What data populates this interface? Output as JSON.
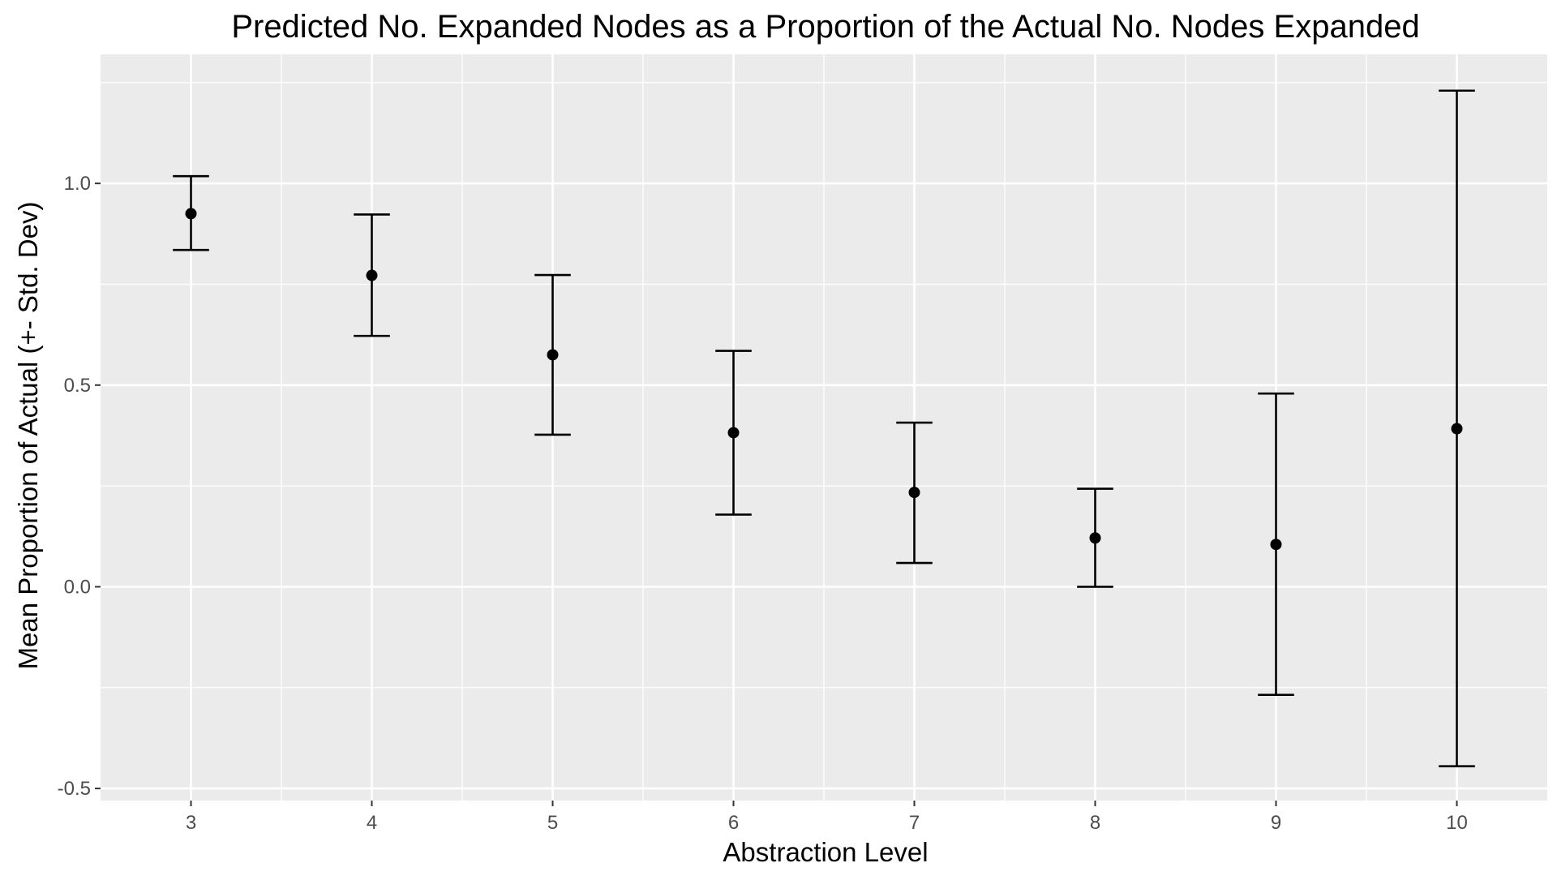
{
  "chart_data": {
    "type": "scatter",
    "title": "Predicted No. Expanded Nodes as a Proportion of the Actual No. Nodes Expanded",
    "xlabel": "Abstraction Level",
    "ylabel": "Mean Proportion of Actual (+- Std. Dev)",
    "categories": [
      "3",
      "4",
      "5",
      "6",
      "7",
      "8",
      "9",
      "10"
    ],
    "mean": [
      0.925,
      0.772,
      0.575,
      0.382,
      0.234,
      0.121,
      0.105,
      0.392
    ],
    "upper": [
      1.018,
      0.923,
      0.773,
      0.585,
      0.407,
      0.243,
      0.479,
      1.23
    ],
    "lower": [
      0.835,
      0.622,
      0.377,
      0.179,
      0.059,
      0.0,
      -0.268,
      -0.445
    ],
    "ylim": [
      -0.53,
      1.32
    ],
    "yticks": [
      -0.5,
      0.0,
      0.5,
      1.0
    ],
    "ytick_labels": [
      "-0.5",
      "0.0",
      "0.5",
      "1.0"
    ],
    "grid": true,
    "colors": {
      "panel_background": "#ebebeb",
      "grid_line": "#ffffff",
      "marker": "#000000"
    }
  }
}
